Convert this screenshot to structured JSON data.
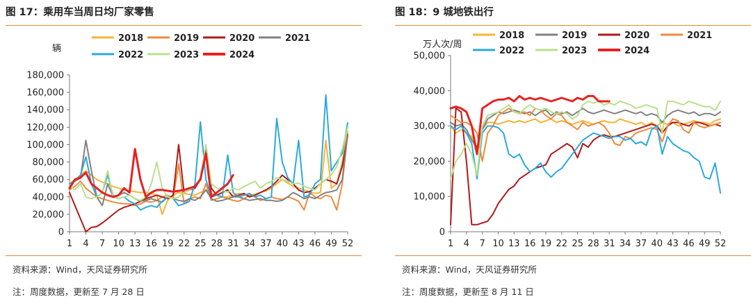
{
  "charts": [
    {
      "title": "图 17：乘用车当周日均厂家零售",
      "source": "资料来源：Wind，天风证券研究所",
      "note": "注：周度数据，更新至 7 月 28 日",
      "chart_data": {
        "type": "line",
        "ylabel": "辆",
        "ylim": [
          0,
          180000
        ],
        "yticks": [
          "0",
          "20,000",
          "40,000",
          "60,000",
          "80,000",
          "100,000",
          "120,000",
          "140,000",
          "160,000",
          "180,000"
        ],
        "xlim": [
          1,
          52
        ],
        "xticks": [
          "1",
          "4",
          "7",
          "10",
          "13",
          "16",
          "19",
          "22",
          "25",
          "28",
          "31",
          "34",
          "37",
          "40",
          "43",
          "46",
          "49",
          "52"
        ],
        "legend": [
          "2018",
          "2019",
          "2020",
          "2021",
          "2022",
          "2023",
          "2024"
        ],
        "series": [
          {
            "name": "2018",
            "color": "#f5b335",
            "width": 2,
            "values": [
              55000,
              60000,
              65000,
              70000,
              65000,
              60000,
              57000,
              55000,
              52000,
              50000,
              48000,
              47000,
              46000,
              45000,
              45000,
              44000,
              42000,
              20000,
              36000,
              42000,
              45000,
              44000,
              43000,
              42000,
              45000,
              48000,
              44000,
              42000,
              40000,
              40000,
              42000,
              44000,
              43000,
              42000,
              43000,
              45000,
              47000,
              50000,
              55000,
              60000,
              56000,
              52000,
              50000,
              48000,
              46000,
              44000,
              45000,
              105000,
              50000,
              55000,
              80000,
              115000
            ]
          },
          {
            "name": "2019",
            "color": "#ef8a3c",
            "width": 2,
            "values": [
              48000,
              52000,
              58000,
              50000,
              45000,
              40000,
              38000,
              36000,
              34000,
              33000,
              32000,
              32000,
              30000,
              32000,
              35000,
              34000,
              36000,
              40000,
              42000,
              38000,
              78000,
              32000,
              38000,
              40000,
              38000,
              55000,
              36000,
              38000,
              40000,
              38000,
              36000,
              35000,
              38000,
              42000,
              40000,
              36000,
              38000,
              40000,
              38000,
              37000,
              40000,
              38000,
              35000,
              25000,
              45000,
              40000,
              38000,
              42000,
              40000,
              25000,
              55000,
              112000
            ]
          },
          {
            "name": "2020",
            "color": "#b01818",
            "width": 2,
            "values": [
              45000,
              30000,
              15000,
              0,
              5000,
              6000,
              10000,
              15000,
              20000,
              25000,
              28000,
              30000,
              32000,
              35000,
              38000,
              40000,
              42000,
              40000,
              38000,
              42000,
              100000,
              45000,
              48000,
              50000,
              60000,
              95000,
              50000,
              42000,
              45000,
              48000,
              40000,
              42000,
              44000,
              40000,
              42000,
              45000,
              48000,
              52000,
              58000,
              65000,
              60000,
              55000,
              48000,
              45000,
              46000,
              50000,
              55000,
              60000,
              58000,
              55000,
              75000,
              110000
            ]
          },
          {
            "name": "2021",
            "color": "#808080",
            "width": 2,
            "values": [
              55000,
              58000,
              62000,
              105000,
              70000,
              40000,
              30000,
              55000,
              40000,
              42000,
              45000,
              42000,
              38000,
              35000,
              36000,
              38000,
              36000,
              34000,
              40000,
              38000,
              36000,
              35000,
              38000,
              36000,
              40000,
              48000,
              38000,
              35000,
              36000,
              38000,
              40000,
              40000,
              38000,
              36000,
              37000,
              38000,
              36000,
              36000,
              35000,
              36000,
              40000,
              45000,
              42000,
              38000,
              40000,
              38000,
              42000,
              45000,
              46000,
              48000,
              60000,
              112000
            ]
          },
          {
            "name": "2022",
            "color": "#2aa8e0",
            "width": 2,
            "values": [
              55000,
              58000,
              65000,
              86000,
              55000,
              40000,
              45000,
              65000,
              42000,
              38000,
              40000,
              35000,
              32000,
              25000,
              28000,
              30000,
              28000,
              35000,
              40000,
              38000,
              30000,
              32000,
              35000,
              55000,
              126000,
              60000,
              40000,
              42000,
              40000,
              88000,
              45000,
              40000,
              42000,
              44000,
              40000,
              42000,
              38000,
              40000,
              130000,
              80000,
              62000,
              55000,
              105000,
              40000,
              42000,
              55000,
              60000,
              157000,
              70000,
              80000,
              90000,
              125000
            ]
          },
          {
            "name": "2023",
            "color": "#b8e08a",
            "width": 2,
            "values": [
              52000,
              48000,
              55000,
              40000,
              38000,
              40000,
              45000,
              70000,
              40000,
              38000,
              40000,
              42000,
              38000,
              36000,
              40000,
              55000,
              80000,
              50000,
              40000,
              38000,
              40000,
              45000,
              48000,
              52000,
              62000,
              100000,
              55000,
              50000,
              48000,
              45000,
              50000,
              48000,
              52000,
              55000,
              58000,
              50000,
              55000,
              58000,
              62000,
              60000,
              58000,
              55000,
              56000,
              52000,
              50000,
              48000,
              55000,
              60000,
              65000,
              75000,
              95000,
              120000
            ]
          },
          {
            "name": "2024",
            "color": "#e82020",
            "width": 3,
            "values": [
              50000,
              60000,
              62000,
              68000,
              55000,
              50000,
              45000,
              42000,
              40000,
              42000,
              50000,
              45000,
              95000,
              60000,
              40000,
              45000,
              48000,
              48000,
              47000,
              46000,
              47000,
              48000,
              50000,
              52000,
              60000,
              90000,
              40000,
              45000,
              50000,
              55000,
              65000
            ]
          }
        ]
      }
    },
    {
      "title": "图 18：9 城地铁出行",
      "source": "资料来源：Wind，天风证券研究所",
      "note": "注：周度数据，更新至 8 月 11 日",
      "chart_data": {
        "type": "line",
        "ylabel": "万人次/周",
        "ylim": [
          0,
          50000
        ],
        "yticks": [
          "0",
          "10,000",
          "20,000",
          "30,000",
          "40,000",
          "50,000"
        ],
        "xlim": [
          1,
          52
        ],
        "xticks": [
          "1",
          "4",
          "7",
          "10",
          "13",
          "16",
          "19",
          "22",
          "25",
          "28",
          "31",
          "34",
          "37",
          "40",
          "43",
          "46",
          "49",
          "52"
        ],
        "legend": [
          "2018",
          "2019",
          "2020",
          "2021",
          "2022",
          "2023",
          "2024"
        ],
        "series": [
          {
            "name": "2018",
            "color": "#f5b335",
            "width": 2,
            "values": [
              30000,
              28000,
              29000,
              28000,
              27000,
              22000,
              29000,
              31000,
              31000,
              30500,
              31000,
              31500,
              31000,
              31500,
              31000,
              31500,
              32000,
              31000,
              31500,
              32000,
              31000,
              31500,
              31000,
              30500,
              31000,
              31500,
              31000,
              30500,
              31000,
              31500,
              31000,
              31000,
              32000,
              31500,
              31000,
              30500,
              31000,
              30000,
              31000,
              30000,
              31000,
              30500,
              31000,
              30000,
              30500,
              31000,
              31500,
              31000,
              31000,
              30500,
              31500,
              32000
            ]
          },
          {
            "name": "2019",
            "color": "#808080",
            "width": 2,
            "values": [
              31000,
              30000,
              30500,
              29000,
              26000,
              24000,
              29000,
              32000,
              33000,
              34000,
              33500,
              34000,
              34500,
              34000,
              33500,
              34000,
              33000,
              34000,
              34500,
              33000,
              34000,
              33500,
              34000,
              33000,
              34000,
              35000,
              34000,
              33500,
              34000,
              34500,
              34000,
              33500,
              34000,
              34500,
              34000,
              33500,
              34000,
              33000,
              33500,
              33000,
              31000,
              33000,
              34000,
              34500,
              34000,
              33500,
              34000,
              33000,
              33500,
              33500,
              33000,
              34000
            ]
          },
          {
            "name": "2020",
            "color": "#b01818",
            "width": 2,
            "values": [
              2000,
              35000,
              34000,
              20000,
              2000,
              2000,
              2500,
              3000,
              5000,
              8000,
              10000,
              12000,
              13000,
              15000,
              16000,
              17000,
              18000,
              18500,
              19000,
              22000,
              23000,
              24000,
              25000,
              24000,
              21000,
              25000,
              24000,
              26000,
              27000,
              27500,
              27000,
              27000,
              27500,
              28000,
              28500,
              29000,
              29500,
              30000,
              30500,
              30000,
              28000,
              30000,
              31000,
              31000,
              30500,
              30000,
              31000,
              31000,
              30500,
              30000,
              30500,
              30000
            ]
          },
          {
            "name": "2021",
            "color": "#ef8a3c",
            "width": 2,
            "values": [
              33000,
              32000,
              31000,
              31000,
              30000,
              28000,
              20000,
              28000,
              30000,
              33000,
              34000,
              35000,
              34000,
              33500,
              34000,
              33000,
              35000,
              34500,
              33000,
              32000,
              33500,
              33000,
              31000,
              30000,
              29000,
              31000,
              30000,
              30500,
              31000,
              30000,
              28000,
              25000,
              24500,
              27000,
              26500,
              28000,
              28500,
              29000,
              29500,
              29000,
              25500,
              30000,
              32000,
              31500,
              29000,
              28000,
              31000,
              30000,
              29500,
              30000,
              30500,
              31000
            ]
          },
          {
            "name": "2022",
            "color": "#2aa8e0",
            "width": 2,
            "values": [
              30000,
              29000,
              30000,
              28000,
              25000,
              15000,
              28000,
              30000,
              30000,
              29500,
              28000,
              22000,
              21000,
              22000,
              19000,
              17000,
              18000,
              19500,
              17000,
              15500,
              17000,
              18000,
              20000,
              22000,
              24000,
              26000,
              27000,
              28000,
              27500,
              27000,
              26500,
              27000,
              27000,
              26000,
              26500,
              25000,
              25500,
              24500,
              29000,
              30000,
              22000,
              27000,
              25000,
              24000,
              23000,
              22500,
              21000,
              20000,
              15500,
              15000,
              19500,
              11000
            ]
          },
          {
            "name": "2023",
            "color": "#b8e08a",
            "width": 2,
            "values": [
              15000,
              20000,
              22000,
              25000,
              22000,
              16000,
              30000,
              33000,
              33500,
              34000,
              35000,
              36000,
              34000,
              33500,
              35000,
              36000,
              35000,
              34500,
              35000,
              34000,
              33500,
              34000,
              33500,
              32000,
              33000,
              36000,
              37000,
              36500,
              37000,
              36000,
              36500,
              36000,
              37000,
              36500,
              36000,
              35000,
              35500,
              36000,
              35500,
              35000,
              28000,
              37000,
              37000,
              36500,
              36000,
              37000,
              36500,
              36000,
              35500,
              35500,
              34500,
              37000
            ]
          },
          {
            "name": "2024",
            "color": "#e82020",
            "width": 3,
            "values": [
              35000,
              35500,
              35000,
              34000,
              30000,
              22000,
              35000,
              36000,
              37000,
              37500,
              37500,
              38000,
              37000,
              38500,
              37500,
              38000,
              37500,
              38000,
              37500,
              37000,
              37500,
              38000,
              37500,
              37000,
              38000,
              37500,
              38500,
              38500,
              37000,
              37000,
              37000
            ]
          }
        ]
      }
    }
  ]
}
